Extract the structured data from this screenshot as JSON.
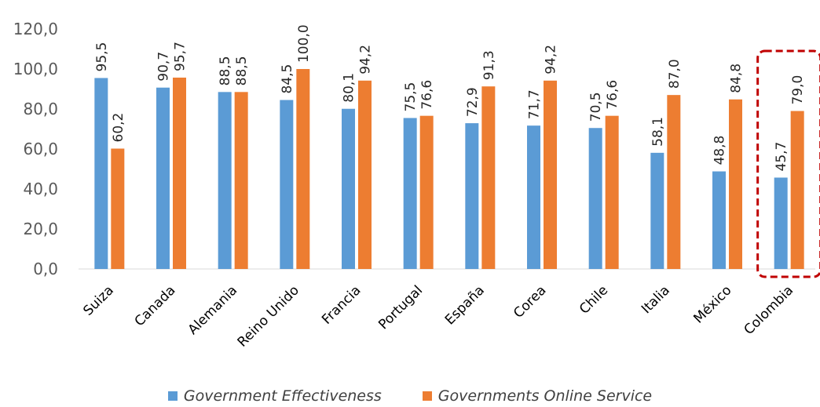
{
  "chart_data": {
    "type": "bar",
    "categories": [
      "Suiza",
      "Canada",
      "Alemania",
      "Reino Unido",
      "Francia",
      "Portugal",
      "España",
      "Corea",
      "Chile",
      "Italia",
      "México",
      "Colombia"
    ],
    "series": [
      {
        "name": "Government Effectiveness",
        "color": "#5B9BD5",
        "values": [
          95.5,
          90.7,
          88.5,
          84.5,
          80.1,
          75.5,
          72.9,
          71.7,
          70.5,
          58.1,
          48.8,
          45.7
        ],
        "labels": [
          "95,5",
          "90,7",
          "88,5",
          "84,5",
          "80,1",
          "75,5",
          "72,9",
          "71,7",
          "70,5",
          "58,1",
          "48,8",
          "45,7"
        ]
      },
      {
        "name": "Governments Online Service",
        "color": "#ED7D31",
        "values": [
          60.2,
          95.7,
          88.5,
          100.0,
          94.2,
          76.6,
          91.3,
          94.2,
          76.6,
          87.0,
          84.8,
          79.0
        ],
        "labels": [
          "60,2",
          "95,7",
          "88,5",
          "100,0",
          "94,2",
          "76,6",
          "91,3",
          "94,2",
          "76,6",
          "87,0",
          "84,8",
          "79,0"
        ]
      }
    ],
    "ylim": [
      0,
      120
    ],
    "yticks": [
      0,
      20,
      40,
      60,
      80,
      100,
      120
    ],
    "ytick_labels": [
      "0,0",
      "20,0",
      "40,0",
      "60,0",
      "80,0",
      "100,0",
      "120,0"
    ],
    "grid": false,
    "legend_position": "bottom",
    "highlight": {
      "category": "Colombia",
      "style": "dashed-box",
      "color": "#C00000"
    }
  }
}
